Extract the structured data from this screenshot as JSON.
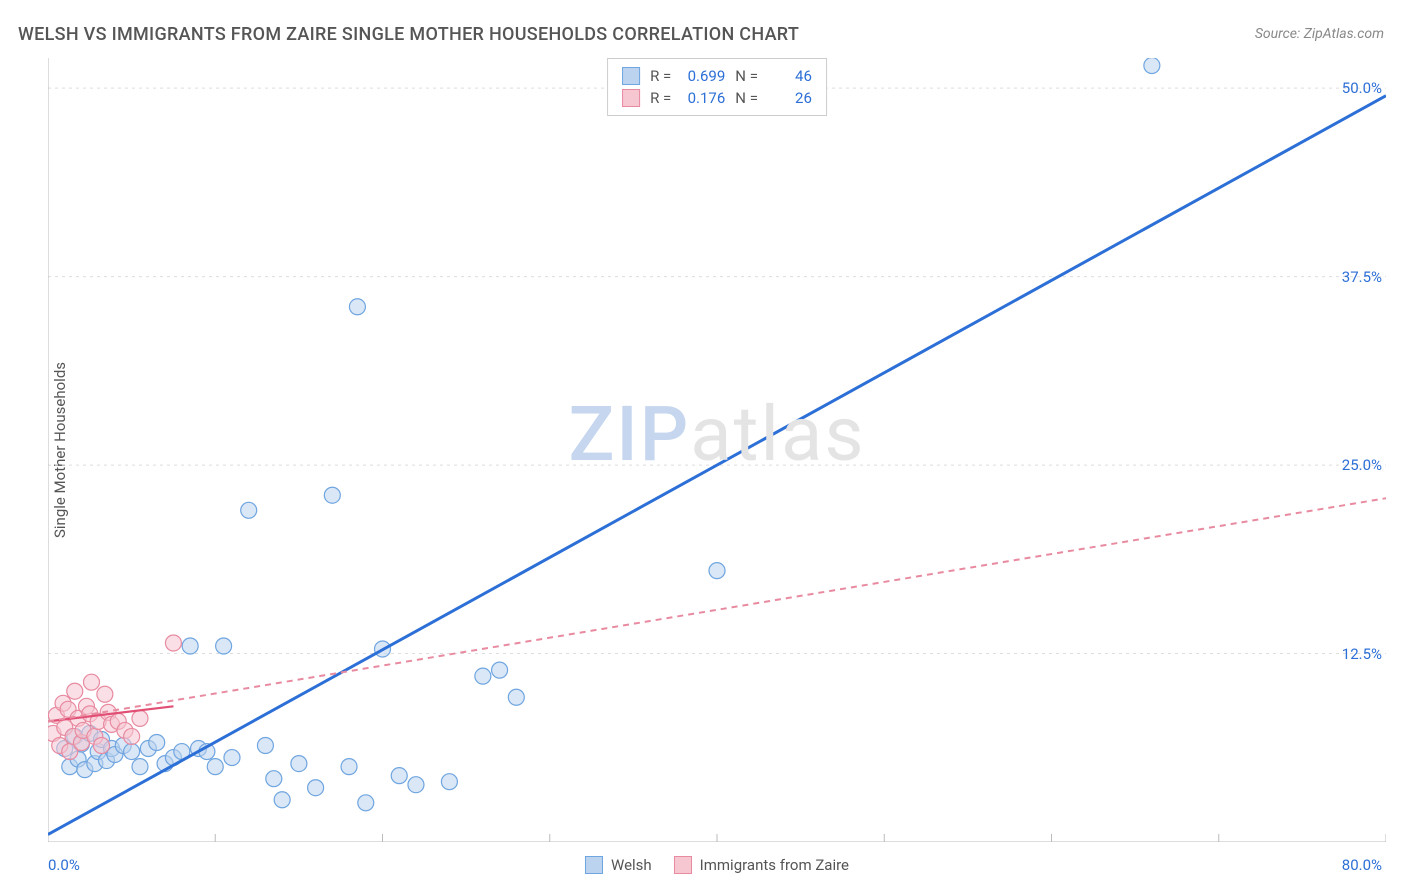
{
  "title": "WELSH VS IMMIGRANTS FROM ZAIRE SINGLE MOTHER HOUSEHOLDS CORRELATION CHART",
  "source": "Source: ZipAtlas.com",
  "y_axis_label": "Single Mother Households",
  "watermark_z": "ZIP",
  "watermark_rest": "atlas",
  "chart": {
    "type": "scatter",
    "xlim": [
      0,
      80
    ],
    "ylim": [
      0,
      52
    ],
    "x_origin_label": "0.0%",
    "x_max_label": "80.0%",
    "y_ticks": [
      {
        "value": 12.5,
        "label": "12.5%"
      },
      {
        "value": 25.0,
        "label": "25.0%"
      },
      {
        "value": 37.5,
        "label": "37.5%"
      },
      {
        "value": 50.0,
        "label": "50.0%"
      }
    ],
    "x_grid_at": [
      10,
      20,
      30,
      40,
      50,
      60,
      70,
      80
    ],
    "background_color": "#ffffff",
    "grid_color": "#dddddd",
    "axis_color": "#bbbbbb",
    "marker_radius": 8,
    "marker_stroke_width": 1.2,
    "tick_len": 8,
    "series": [
      {
        "id": "welsh",
        "label": "Welsh",
        "fill": "#bcd3ef",
        "stroke": "#6fa5e0",
        "fill_opacity": 0.55,
        "line": {
          "color": "#2c6fd6",
          "width": 3,
          "dash": null,
          "from": [
            0,
            0.5
          ],
          "to": [
            80,
            49.5
          ]
        },
        "r_value": "0.699",
        "n_value": "46",
        "points": [
          [
            1.0,
            6.2
          ],
          [
            1.3,
            5.0
          ],
          [
            1.6,
            7.0
          ],
          [
            1.8,
            5.5
          ],
          [
            2.0,
            6.5
          ],
          [
            2.2,
            4.8
          ],
          [
            2.5,
            7.2
          ],
          [
            2.8,
            5.2
          ],
          [
            3.0,
            6.0
          ],
          [
            3.2,
            6.8
          ],
          [
            3.5,
            5.4
          ],
          [
            3.8,
            6.2
          ],
          [
            4.0,
            5.8
          ],
          [
            4.5,
            6.4
          ],
          [
            5.0,
            6.0
          ],
          [
            5.5,
            5.0
          ],
          [
            6.0,
            6.2
          ],
          [
            6.5,
            6.6
          ],
          [
            7.0,
            5.2
          ],
          [
            7.5,
            5.6
          ],
          [
            8.0,
            6.0
          ],
          [
            8.5,
            13.0
          ],
          [
            9.0,
            6.2
          ],
          [
            9.5,
            6.0
          ],
          [
            10.0,
            5.0
          ],
          [
            10.5,
            13.0
          ],
          [
            11.0,
            5.6
          ],
          [
            12.0,
            22.0
          ],
          [
            13.0,
            6.4
          ],
          [
            13.5,
            4.2
          ],
          [
            14.0,
            2.8
          ],
          [
            15.0,
            5.2
          ],
          [
            16.0,
            3.6
          ],
          [
            17.0,
            23.0
          ],
          [
            18.0,
            5.0
          ],
          [
            18.5,
            35.5
          ],
          [
            19.0,
            2.6
          ],
          [
            20.0,
            12.8
          ],
          [
            21.0,
            4.4
          ],
          [
            22.0,
            3.8
          ],
          [
            24.0,
            4.0
          ],
          [
            26.0,
            11.0
          ],
          [
            27.0,
            11.4
          ],
          [
            28.0,
            9.6
          ],
          [
            40.0,
            18.0
          ],
          [
            66.0,
            51.5
          ]
        ]
      },
      {
        "id": "zaire",
        "label": "Immigrants from Zaire",
        "fill": "#f6c6d1",
        "stroke": "#e88aa0",
        "fill_opacity": 0.55,
        "line": {
          "color": "#e88aa0",
          "width": 2,
          "dash": "6,5",
          "from": [
            0,
            8.0
          ],
          "to": [
            80,
            22.8
          ]
        },
        "solid_line": {
          "color": "#e24f75",
          "width": 2.2,
          "from": [
            0,
            8.0
          ],
          "to": [
            7.5,
            9.0
          ]
        },
        "r_value": "0.176",
        "n_value": "26",
        "points": [
          [
            0.3,
            7.2
          ],
          [
            0.5,
            8.4
          ],
          [
            0.7,
            6.4
          ],
          [
            0.9,
            9.2
          ],
          [
            1.0,
            7.6
          ],
          [
            1.2,
            8.8
          ],
          [
            1.3,
            6.0
          ],
          [
            1.5,
            7.0
          ],
          [
            1.6,
            10.0
          ],
          [
            1.8,
            8.2
          ],
          [
            2.0,
            6.6
          ],
          [
            2.1,
            7.4
          ],
          [
            2.3,
            9.0
          ],
          [
            2.5,
            8.5
          ],
          [
            2.6,
            10.6
          ],
          [
            2.8,
            7.0
          ],
          [
            3.0,
            8.0
          ],
          [
            3.2,
            6.4
          ],
          [
            3.4,
            9.8
          ],
          [
            3.6,
            8.6
          ],
          [
            3.8,
            7.8
          ],
          [
            4.2,
            8.0
          ],
          [
            4.6,
            7.4
          ],
          [
            5.0,
            7.0
          ],
          [
            5.5,
            8.2
          ],
          [
            7.5,
            13.2
          ]
        ]
      }
    ]
  },
  "legend_top": {
    "r_label": "R =",
    "n_label": "N ="
  }
}
